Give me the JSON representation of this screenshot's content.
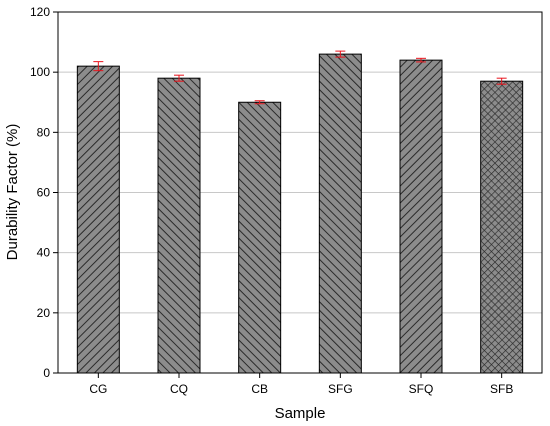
{
  "chart_data": {
    "type": "bar",
    "xlabel": "Sample",
    "ylabel": "Durability Factor (%)",
    "categories": [
      "CG",
      "CQ",
      "CB",
      "SFG",
      "SFQ",
      "SFB"
    ],
    "values": [
      102,
      98,
      90,
      106,
      104,
      97
    ],
    "errors": [
      1.5,
      1.0,
      0.5,
      1.0,
      0.6,
      1.0
    ],
    "patterns": [
      "diag-right",
      "diag-left",
      "diag-left",
      "diag-left",
      "diag-right",
      "crosshatch"
    ],
    "ylim": [
      0,
      120
    ],
    "yticks": [
      0,
      20,
      40,
      60,
      80,
      100,
      120
    ],
    "grid": true,
    "colors": {
      "bar_fill": "#8c8c8c",
      "hatch": "#2a2a2a",
      "error_bar": "#e8141c",
      "grid": "#c8c8c8"
    }
  }
}
